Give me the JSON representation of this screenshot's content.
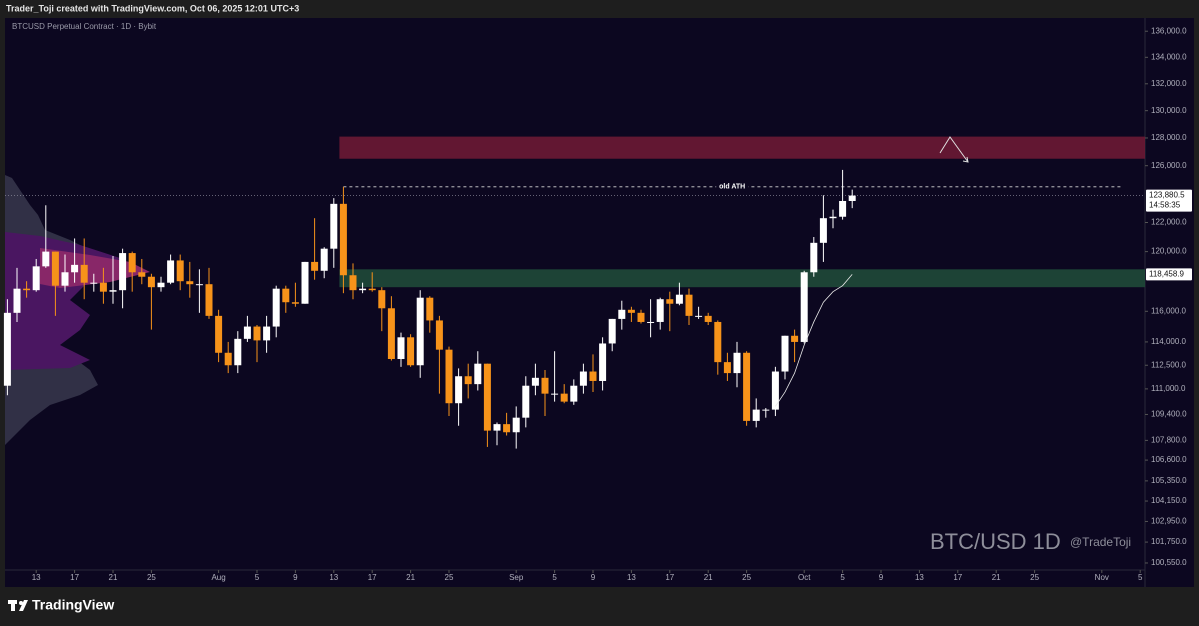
{
  "header": {
    "text": "Trader_Toji created with TradingView.com, Oct 06, 2025 12:01 UTC+3"
  },
  "footer": {
    "brand": "TradingView"
  },
  "chart_data": {
    "type": "candlestick",
    "title": "BTCUSD Perpetual Contract · 1D · Bybit",
    "log": true,
    "grid": false,
    "up_color": "#ffffff",
    "down_color": "#f7931a",
    "xlim": [
      -3.25,
      115.5
    ],
    "ylim": [
      100150,
      136870
    ],
    "xticks": [
      {
        "value": 0,
        "label": "13"
      },
      {
        "value": 4,
        "label": "17"
      },
      {
        "value": 8,
        "label": "21"
      },
      {
        "value": 12,
        "label": "25"
      },
      {
        "value": 19,
        "label": "Aug"
      },
      {
        "value": 23,
        "label": "5"
      },
      {
        "value": 27,
        "label": "9"
      },
      {
        "value": 31,
        "label": "13"
      },
      {
        "value": 35,
        "label": "17"
      },
      {
        "value": 39,
        "label": "21"
      },
      {
        "value": 43,
        "label": "25"
      },
      {
        "value": 50,
        "label": "Sep"
      },
      {
        "value": 54,
        "label": "5"
      },
      {
        "value": 58,
        "label": "9"
      },
      {
        "value": 62,
        "label": "13"
      },
      {
        "value": 66,
        "label": "17"
      },
      {
        "value": 70,
        "label": "21"
      },
      {
        "value": 74,
        "label": "25"
      },
      {
        "value": 80,
        "label": "Oct"
      },
      {
        "value": 84,
        "label": "5"
      },
      {
        "value": 88,
        "label": "9"
      },
      {
        "value": 92,
        "label": "13"
      },
      {
        "value": 96,
        "label": "17"
      },
      {
        "value": 100,
        "label": "21"
      },
      {
        "value": 104,
        "label": "25"
      },
      {
        "value": 111,
        "label": "Nov"
      },
      {
        "value": 115,
        "label": "5"
      }
    ],
    "yticks": [
      {
        "value": 136000,
        "label": "136,000.0"
      },
      {
        "value": 134000,
        "label": "134,000.0"
      },
      {
        "value": 132000,
        "label": "132,000.0"
      },
      {
        "value": 130000,
        "label": "130,000.0"
      },
      {
        "value": 128000,
        "label": "128,000.0"
      },
      {
        "value": 126000,
        "label": "126,000.0"
      },
      {
        "value": 122000,
        "label": "122,000.0"
      },
      {
        "value": 120000,
        "label": "120,000.0"
      },
      {
        "value": 116000,
        "label": "116,000.0"
      },
      {
        "value": 114000,
        "label": "114,000.0"
      },
      {
        "value": 112500,
        "label": "112,500.0"
      },
      {
        "value": 111000,
        "label": "111,000.0"
      },
      {
        "value": 109400,
        "label": "109,400.0"
      },
      {
        "value": 107800,
        "label": "107,800.0"
      },
      {
        "value": 106600,
        "label": "106,600.0"
      },
      {
        "value": 105350,
        "label": "105,350.0"
      },
      {
        "value": 104150,
        "label": "104,150.0"
      },
      {
        "value": 102950,
        "label": "102,950.0"
      },
      {
        "value": 101750,
        "label": "101,750.0"
      },
      {
        "value": 100550,
        "label": "100,550.0"
      }
    ],
    "x": [
      -3,
      -2,
      -1,
      0,
      1,
      2,
      3,
      4,
      5,
      6,
      7,
      8,
      9,
      10,
      11,
      12,
      13,
      14,
      15,
      16,
      17,
      18,
      19,
      20,
      21,
      22,
      23,
      24,
      25,
      26,
      27,
      28,
      29,
      30,
      31,
      32,
      33,
      34,
      35,
      36,
      37,
      38,
      39,
      40,
      41,
      42,
      43,
      44,
      45,
      46,
      47,
      48,
      49,
      50,
      51,
      52,
      53,
      54,
      55,
      56,
      57,
      58,
      59,
      60,
      61,
      62,
      63,
      64,
      65,
      66,
      67,
      68,
      69,
      70,
      71,
      72,
      73,
      74,
      75,
      76,
      77,
      78,
      79,
      80,
      81,
      82,
      83,
      84,
      85
    ],
    "open": [
      111200,
      115900,
      117500,
      117400,
      119000,
      120000,
      117700,
      118600,
      119100,
      117900,
      117900,
      117300,
      117400,
      119900,
      118600,
      118300,
      117600,
      117900,
      119400,
      118000,
      117800,
      117800,
      115700,
      113300,
      112500,
      114200,
      115000,
      114100,
      115000,
      117500,
      116600,
      116500,
      119300,
      118700,
      120200,
      123300,
      118400,
      117400,
      117500,
      117400,
      116200,
      112900,
      114300,
      112500,
      116900,
      115400,
      113500,
      110100,
      111800,
      111300,
      112600,
      108400,
      108800,
      108300,
      109200,
      111200,
      111700,
      110700,
      110700,
      110200,
      111200,
      112100,
      111500,
      113900,
      115500,
      116100,
      115900,
      115300,
      115300,
      116800,
      116500,
      117100,
      115700,
      115700,
      115300,
      112700,
      112000,
      113300,
      109000,
      109700,
      109700,
      112100,
      114400,
      114000,
      118600,
      120600,
      122300,
      122400,
      123500
    ],
    "high": [
      116800,
      118900,
      118000,
      119500,
      123200,
      120000,
      119800,
      120900,
      120900,
      118500,
      118900,
      119700,
      120200,
      120000,
      119500,
      118500,
      118300,
      119800,
      119800,
      119300,
      118800,
      118900,
      116100,
      114000,
      114700,
      115700,
      115100,
      115700,
      117700,
      117700,
      117900,
      119300,
      122300,
      120300,
      123700,
      124500,
      119200,
      117900,
      118600,
      117600,
      117000,
      114600,
      114500,
      117400,
      117000,
      115700,
      113700,
      112300,
      112600,
      113400,
      112600,
      108900,
      109500,
      109900,
      111800,
      112600,
      112200,
      113400,
      111300,
      111600,
      112600,
      113200,
      114300,
      115500,
      116700,
      116300,
      116100,
      116800,
      116900,
      117300,
      117900,
      117500,
      116300,
      115900,
      115400,
      113300,
      114000,
      113400,
      110400,
      109800,
      112400,
      114400,
      114800,
      118700,
      121000,
      123900,
      122900,
      125700,
      124300
    ],
    "low": [
      110600,
      115300,
      116900,
      117300,
      118900,
      115700,
      117300,
      117900,
      116800,
      117300,
      116500,
      116500,
      116200,
      117300,
      117800,
      114800,
      117300,
      117800,
      117400,
      116900,
      115900,
      115500,
      112700,
      112000,
      112000,
      114000,
      112700,
      113300,
      114300,
      115900,
      116300,
      116500,
      118100,
      118200,
      118900,
      117200,
      116800,
      117200,
      117300,
      114700,
      112800,
      112400,
      112400,
      111700,
      114600,
      110700,
      109300,
      108700,
      110400,
      110900,
      107400,
      107500,
      108100,
      107300,
      108600,
      110600,
      109300,
      110200,
      110100,
      110000,
      110700,
      110800,
      110900,
      113400,
      114800,
      115300,
      115200,
      114300,
      114800,
      114700,
      116400,
      115100,
      115500,
      115100,
      111900,
      111500,
      111100,
      108700,
      108600,
      109200,
      109300,
      111600,
      112700,
      113900,
      118300,
      119300,
      121600,
      122200,
      123000
    ],
    "close": [
      115900,
      117500,
      117400,
      119000,
      120000,
      117700,
      118600,
      119100,
      117900,
      117900,
      117300,
      117400,
      119900,
      118600,
      118300,
      117600,
      117900,
      119400,
      118000,
      117800,
      117800,
      115700,
      113300,
      112500,
      114200,
      115000,
      114100,
      115000,
      117500,
      116600,
      116500,
      119300,
      118700,
      120200,
      123300,
      118400,
      117400,
      117500,
      117400,
      116200,
      112900,
      114300,
      112500,
      116900,
      115400,
      113500,
      110100,
      111800,
      111300,
      112600,
      108400,
      108800,
      108300,
      109200,
      111200,
      111700,
      110700,
      110700,
      110200,
      111200,
      112100,
      111500,
      113900,
      115500,
      116100,
      115900,
      115300,
      115300,
      116800,
      116500,
      117100,
      115700,
      115700,
      115300,
      112700,
      112000,
      113300,
      109000,
      109700,
      109700,
      112100,
      114400,
      114000,
      118600,
      120600,
      122300,
      122400,
      123500,
      123880.5
    ],
    "last_price_label": "123,880.5",
    "countdown": "14:58:35",
    "indicator": {
      "color": "#e8e8e8",
      "x": [
        77,
        78,
        79,
        80,
        81,
        82,
        83,
        84,
        85
      ],
      "values": [
        109900,
        110800,
        112000,
        113800,
        115300,
        116600,
        117300,
        117700,
        118458.9
      ],
      "last_label": "118,458.9"
    },
    "zones": [
      {
        "from": 126500,
        "to": 128100,
        "x_from": 32,
        "color": "#6b1a34"
      },
      {
        "from": 117600,
        "to": 118800,
        "x_from": 32,
        "color": "#1f4a38"
      }
    ],
    "reference_line": {
      "value": 124500,
      "label": "old ATH",
      "x_from": 32,
      "x_to": 113
    },
    "watermark": "BTC/USD 1D",
    "author": "@TradeToji"
  }
}
